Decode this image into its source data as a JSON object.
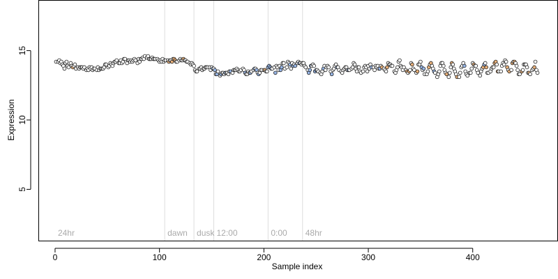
{
  "chart_data": {
    "type": "scatter",
    "title": "",
    "xlabel": "Sample index",
    "ylabel": "Expression",
    "xlim": [
      -16,
      481
    ],
    "ylim": [
      1.3,
      18.6
    ],
    "x_ticks": [
      0,
      100,
      200,
      300,
      400
    ],
    "y_ticks": [
      5,
      10,
      15
    ],
    "grid": false,
    "legend": "none",
    "colors": {
      "axis": "#000000",
      "divider": "#dddddd",
      "region_label": "#aaaaaa",
      "point_outline": "#1a1a1a",
      "fill_default": "#ffffff",
      "fill_orange": "#e8b07a",
      "fill_blue": "#9ab8e8"
    },
    "regions": [
      {
        "label": "24hr",
        "x_start": 0,
        "x_end": 105
      },
      {
        "label": "dawn",
        "x_start": 105,
        "x_end": 133
      },
      {
        "label": "dusk",
        "x_start": 133,
        "x_end": 152
      },
      {
        "label": "12:00",
        "x_start": 152,
        "x_end": 204
      },
      {
        "label": "0:00",
        "x_start": 204,
        "x_end": 237
      },
      {
        "label": "48hr",
        "x_start": 237,
        "x_end": 462
      }
    ],
    "dividers": [
      105,
      133,
      152,
      204,
      237
    ],
    "points": [
      [
        1,
        14.2
      ],
      [
        3,
        14.2
      ],
      [
        4,
        14.3
      ],
      [
        5,
        14.1
      ],
      [
        6,
        14.2
      ],
      [
        7,
        14
      ],
      [
        8,
        13.9
      ],
      [
        9,
        13.7
      ],
      [
        10,
        14.1
      ],
      [
        11,
        14.2
      ],
      [
        12,
        13.9
      ],
      [
        13,
        13.8
      ],
      [
        15,
        14.1
      ],
      [
        16,
        13.9
      ],
      [
        17,
        13.8
      ],
      [
        18,
        13.9
      ],
      [
        19,
        14
      ],
      [
        20,
        13.7
      ],
      [
        22,
        13.8
      ],
      [
        23,
        13.7
      ],
      [
        24,
        13.8
      ],
      [
        25,
        13.8
      ],
      [
        26,
        13.8
      ],
      [
        27,
        13.7
      ],
      [
        28,
        13.8
      ],
      [
        30,
        13.6
      ],
      [
        31,
        13.7
      ],
      [
        32,
        13.6
      ],
      [
        33,
        13.8
      ],
      [
        34,
        13.7
      ],
      [
        35,
        13.8
      ],
      [
        36,
        13.6
      ],
      [
        37,
        13.7
      ],
      [
        38,
        13.7
      ],
      [
        40,
        13.6
      ],
      [
        41,
        13.8
      ],
      [
        42,
        13.6
      ],
      [
        43,
        13.7
      ],
      [
        44,
        13.7
      ],
      [
        45,
        13.7
      ],
      [
        46,
        13.7
      ],
      [
        47,
        13.8
      ],
      [
        48,
        14
      ],
      [
        49,
        14
      ],
      [
        51,
        13.8
      ],
      [
        52,
        13.9
      ],
      [
        53,
        14.1
      ],
      [
        54,
        14
      ],
      [
        55,
        13.9
      ],
      [
        56,
        14.1
      ],
      [
        57,
        14.2
      ],
      [
        58,
        14.2
      ],
      [
        59,
        14.3
      ],
      [
        61,
        14.1
      ],
      [
        62,
        14.1
      ],
      [
        63,
        14.3
      ],
      [
        64,
        14.1
      ],
      [
        65,
        14.2
      ],
      [
        66,
        14.4
      ],
      [
        67,
        14.4
      ],
      [
        69,
        14.1
      ],
      [
        70,
        14.3
      ],
      [
        71,
        14.3
      ],
      [
        72,
        14.2
      ],
      [
        73,
        14.3
      ],
      [
        74,
        14.2
      ],
      [
        75,
        14.3
      ],
      [
        76,
        14.4
      ],
      [
        77,
        14.3
      ],
      [
        79,
        14.1
      ],
      [
        80,
        14.4
      ],
      [
        81,
        14.2
      ],
      [
        82,
        14.4
      ],
      [
        83,
        14.4
      ],
      [
        84,
        14.5
      ],
      [
        85,
        14.4
      ],
      [
        86,
        14.6
      ],
      [
        88,
        14.5
      ],
      [
        89,
        14.6
      ],
      [
        90,
        14.4
      ],
      [
        91,
        14.4
      ],
      [
        92,
        14.4
      ],
      [
        93,
        14.5
      ],
      [
        94,
        14.4
      ],
      [
        95,
        14.4
      ],
      [
        96,
        14.4
      ],
      [
        98,
        14.4
      ],
      [
        99,
        14.3
      ],
      [
        100,
        14.2
      ],
      [
        101,
        14.3
      ],
      [
        102,
        14.2
      ],
      [
        103,
        14.4
      ],
      [
        104,
        14.2
      ],
      [
        105,
        14.3
      ],
      [
        106,
        14.3
      ],
      [
        108,
        14.3
      ],
      [
        109,
        14.2
      ],
      [
        110,
        14.3
      ],
      [
        111,
        14.3
      ],
      [
        112,
        14.2
      ],
      [
        113,
        14.4
      ],
      [
        114,
        14.4
      ],
      [
        115,
        14.3
      ],
      [
        116,
        14.2
      ],
      [
        117,
        14.2
      ],
      [
        119,
        14.3
      ],
      [
        120,
        14.4
      ],
      [
        121,
        14.3
      ],
      [
        122,
        14.3
      ],
      [
        123,
        14.4
      ],
      [
        124,
        14.3
      ],
      [
        125,
        14.3
      ],
      [
        126,
        14.2
      ],
      [
        127,
        14.2
      ],
      [
        129,
        14.1
      ],
      [
        130,
        14
      ],
      [
        131,
        14.1
      ],
      [
        132,
        14
      ],
      [
        133,
        13.9
      ],
      [
        134,
        13.6
      ],
      [
        135,
        13.5
      ],
      [
        136,
        13.5
      ],
      [
        138,
        13.7
      ],
      [
        139,
        13.7
      ],
      [
        140,
        13.8
      ],
      [
        141,
        13.6
      ],
      [
        142,
        13.7
      ],
      [
        143,
        13.7
      ],
      [
        144,
        13.8
      ],
      [
        145,
        13.8
      ],
      [
        146,
        13.8
      ],
      [
        148,
        13.8
      ],
      [
        149,
        13.6
      ],
      [
        150,
        13.8
      ],
      [
        151,
        13.7
      ],
      [
        152,
        13.7
      ],
      [
        153,
        13.6
      ],
      [
        154,
        13.3
      ],
      [
        155,
        13.3
      ],
      [
        156,
        13.5
      ],
      [
        158,
        13.2
      ],
      [
        159,
        13.3
      ],
      [
        160,
        13.4
      ],
      [
        161,
        13.4
      ],
      [
        162,
        13.3
      ],
      [
        163,
        13.4
      ],
      [
        164,
        13.4
      ],
      [
        165,
        13.4
      ],
      [
        166,
        13.3
      ],
      [
        167,
        13.5
      ],
      [
        168,
        13.5
      ],
      [
        170,
        13.4
      ],
      [
        171,
        13.6
      ],
      [
        172,
        13.6
      ],
      [
        173,
        13.6
      ],
      [
        174,
        13.7
      ],
      [
        175,
        13.6
      ],
      [
        176,
        13.5
      ],
      [
        177,
        13.5
      ],
      [
        178,
        13.6
      ],
      [
        180,
        13.7
      ],
      [
        181,
        13.6
      ],
      [
        182,
        13.4
      ],
      [
        183,
        13.3
      ],
      [
        184,
        13.3
      ],
      [
        185,
        13.5
      ],
      [
        186,
        13.4
      ],
      [
        187,
        13.4
      ],
      [
        188,
        13.5
      ],
      [
        190,
        13.6
      ],
      [
        191,
        13.7
      ],
      [
        192,
        13.7
      ],
      [
        193,
        13.6
      ],
      [
        194,
        13.4
      ],
      [
        195,
        13.3
      ],
      [
        196,
        13.4
      ],
      [
        197,
        13.6
      ],
      [
        198,
        13.6
      ],
      [
        200,
        13.6
      ],
      [
        201,
        13.6
      ],
      [
        202,
        13.5
      ],
      [
        203,
        13.5
      ],
      [
        204,
        13.8
      ],
      [
        205,
        13.9
      ],
      [
        206,
        13.8
      ],
      [
        207,
        13.7
      ],
      [
        208,
        13.7
      ],
      [
        210,
        13.8
      ],
      [
        211,
        13.4
      ],
      [
        212,
        13.9
      ],
      [
        213,
        13.8
      ],
      [
        214,
        13.6
      ],
      [
        215,
        13.9
      ],
      [
        216,
        13.6
      ],
      [
        217,
        13.8
      ],
      [
        218,
        14.1
      ],
      [
        219,
        14.1
      ],
      [
        220,
        13.7
      ],
      [
        222,
        13.8
      ],
      [
        223,
        14.2
      ],
      [
        224,
        14.1
      ],
      [
        225,
        14
      ],
      [
        226,
        13.7
      ],
      [
        227,
        14.1
      ],
      [
        228,
        13.9
      ],
      [
        229,
        14
      ],
      [
        230,
        13.9
      ],
      [
        232,
        14.1
      ],
      [
        233,
        14.2
      ],
      [
        234,
        14.1
      ],
      [
        235,
        14.1
      ],
      [
        236,
        14
      ],
      [
        237,
        14.1
      ],
      [
        238,
        14.1
      ],
      [
        239,
        13.9
      ],
      [
        240,
        13.8
      ],
      [
        242,
        13.6
      ],
      [
        243,
        13.4
      ],
      [
        244,
        13.6
      ],
      [
        245,
        13.9
      ],
      [
        246,
        13.9
      ],
      [
        247,
        14
      ],
      [
        248,
        13.9
      ],
      [
        249,
        13.5
      ],
      [
        250,
        13.6
      ],
      [
        251,
        13.6
      ],
      [
        252,
        13.5
      ],
      [
        254,
        13.4
      ],
      [
        255,
        13.3
      ],
      [
        256,
        13.5
      ],
      [
        257,
        13.7
      ],
      [
        258,
        13.9
      ],
      [
        259,
        13.6
      ],
      [
        260,
        13.8
      ],
      [
        261,
        13.9
      ],
      [
        262,
        13.8
      ],
      [
        264,
        13.5
      ],
      [
        265,
        13.3
      ],
      [
        266,
        13.6
      ],
      [
        267,
        13.7
      ],
      [
        268,
        13.9
      ],
      [
        269,
        14
      ],
      [
        270,
        13.8
      ],
      [
        271,
        13.8
      ],
      [
        272,
        13.6
      ],
      [
        274,
        13.5
      ],
      [
        275,
        13.4
      ],
      [
        276,
        13.6
      ],
      [
        277,
        13.7
      ],
      [
        278,
        13.8
      ],
      [
        279,
        13.8
      ],
      [
        280,
        13.6
      ],
      [
        281,
        13.6
      ],
      [
        282,
        13.6
      ],
      [
        284,
        13.7
      ],
      [
        285,
        13.8
      ],
      [
        286,
        14.1
      ],
      [
        287,
        14
      ],
      [
        288,
        13.7
      ],
      [
        289,
        13.5
      ],
      [
        290,
        13.8
      ],
      [
        291,
        13.8
      ],
      [
        292,
        13.5
      ],
      [
        293,
        13.4
      ],
      [
        295,
        13.5
      ],
      [
        296,
        13.8
      ],
      [
        297,
        13.9
      ],
      [
        298,
        13.8
      ],
      [
        299,
        13.5
      ],
      [
        300,
        13.9
      ],
      [
        301,
        13.7
      ],
      [
        302,
        14
      ],
      [
        303,
        13.8
      ],
      [
        305,
        13.8
      ],
      [
        306,
        13.6
      ],
      [
        307,
        13.9
      ],
      [
        308,
        13.8
      ],
      [
        309,
        13.9
      ],
      [
        310,
        13.7
      ],
      [
        311,
        13.7
      ],
      [
        312,
        13.9
      ],
      [
        313,
        13.8
      ],
      [
        315,
        13.7
      ],
      [
        316,
        13.6
      ],
      [
        317,
        13.5
      ],
      [
        318,
        13.8
      ],
      [
        319,
        14.1
      ],
      [
        320,
        14
      ],
      [
        321,
        14
      ],
      [
        322,
        13.9
      ],
      [
        323,
        13.9
      ],
      [
        325,
        13.5
      ],
      [
        326,
        13.4
      ],
      [
        327,
        13.6
      ],
      [
        328,
        13.8
      ],
      [
        329,
        14.2
      ],
      [
        330,
        14.3
      ],
      [
        331,
        13.9
      ],
      [
        332,
        13.8
      ],
      [
        333,
        13.6
      ],
      [
        334,
        13.8
      ],
      [
        336,
        13.6
      ],
      [
        337,
        13.5
      ],
      [
        338,
        13.4
      ],
      [
        339,
        13.5
      ],
      [
        340,
        13.6
      ],
      [
        341,
        14.1
      ],
      [
        342,
        14
      ],
      [
        343,
        13.7
      ],
      [
        344,
        13.6
      ],
      [
        346,
        13.4
      ],
      [
        347,
        13.5
      ],
      [
        348,
        14
      ],
      [
        349,
        14
      ],
      [
        350,
        14.2
      ],
      [
        351,
        13.8
      ],
      [
        352,
        13.6
      ],
      [
        353,
        13.7
      ],
      [
        354,
        13.3
      ],
      [
        356,
        13.3
      ],
      [
        357,
        13.5
      ],
      [
        358,
        13.8
      ],
      [
        359,
        14
      ],
      [
        360,
        14.1
      ],
      [
        361,
        13.9
      ],
      [
        362,
        13.7
      ],
      [
        363,
        13.5
      ],
      [
        364,
        13.4
      ],
      [
        366,
        13.1
      ],
      [
        367,
        13.3
      ],
      [
        368,
        13.5
      ],
      [
        369,
        13.9
      ],
      [
        370,
        14.1
      ],
      [
        371,
        14.1
      ],
      [
        372,
        13.9
      ],
      [
        373,
        13.6
      ],
      [
        374,
        13.4
      ],
      [
        375,
        13.3
      ],
      [
        377,
        13.1
      ],
      [
        378,
        13.4
      ],
      [
        379,
        13.8
      ],
      [
        380,
        14.1
      ],
      [
        381,
        14
      ],
      [
        382,
        13.7
      ],
      [
        383,
        13.5
      ],
      [
        384,
        13.3
      ],
      [
        385,
        13.1
      ],
      [
        387,
        13.1
      ],
      [
        388,
        13.4
      ],
      [
        389,
        13.8
      ],
      [
        390,
        13.9
      ],
      [
        391,
        14.1
      ],
      [
        392,
        13.9
      ],
      [
        393,
        13.5
      ],
      [
        394,
        13.3
      ],
      [
        395,
        13.2
      ],
      [
        397,
        13.4
      ],
      [
        398,
        13.4
      ],
      [
        399,
        13.7
      ],
      [
        400,
        14.1
      ],
      [
        401,
        14
      ],
      [
        402,
        13.9
      ],
      [
        403,
        13.9
      ],
      [
        404,
        13.6
      ],
      [
        405,
        13.4
      ],
      [
        407,
        13.2
      ],
      [
        408,
        13.5
      ],
      [
        409,
        13.7
      ],
      [
        410,
        13.8
      ],
      [
        411,
        14
      ],
      [
        412,
        14.1
      ],
      [
        413,
        13.8
      ],
      [
        414,
        13.4
      ],
      [
        415,
        13.4
      ],
      [
        417,
        13.5
      ],
      [
        418,
        13.7
      ],
      [
        419,
        13.8
      ],
      [
        420,
        13.8
      ],
      [
        421,
        14.1
      ],
      [
        422,
        14.2
      ],
      [
        423,
        14
      ],
      [
        424,
        13.5
      ],
      [
        425,
        13.5
      ],
      [
        427,
        13.5
      ],
      [
        428,
        13.9
      ],
      [
        429,
        14.1
      ],
      [
        430,
        14
      ],
      [
        431,
        14.3
      ],
      [
        432,
        14.2
      ],
      [
        433,
        13.8
      ],
      [
        434,
        13.6
      ],
      [
        435,
        13.5
      ],
      [
        437,
        13.6
      ],
      [
        438,
        14.1
      ],
      [
        439,
        14.2
      ],
      [
        440,
        14.2
      ],
      [
        441,
        14.1
      ],
      [
        442,
        13.9
      ],
      [
        443,
        13.6
      ],
      [
        444,
        13.3
      ],
      [
        445,
        13.3
      ],
      [
        447,
        13.5
      ],
      [
        448,
        13.6
      ],
      [
        449,
        14
      ],
      [
        450,
        14
      ],
      [
        451,
        14
      ],
      [
        452,
        13.8
      ],
      [
        453,
        13.4
      ],
      [
        454,
        13.4
      ],
      [
        455,
        13.3
      ],
      [
        457,
        13.6
      ],
      [
        458,
        13.7
      ],
      [
        459,
        13.8
      ],
      [
        460,
        14.2
      ],
      [
        461,
        13.6
      ],
      [
        462,
        13.4
      ]
    ],
    "orange_points": [
      17,
      109,
      112,
      114,
      115,
      123,
      201,
      313,
      318,
      335,
      337,
      339,
      342,
      347,
      355,
      358,
      360,
      375,
      380,
      385,
      401,
      410,
      413,
      421,
      422,
      424,
      433,
      435,
      438,
      440,
      446,
      447,
      454,
      459
    ],
    "blue_points": [
      151,
      153,
      155,
      157,
      159,
      163,
      168,
      182,
      187,
      191,
      193,
      195,
      199,
      204,
      205,
      206,
      207,
      211,
      216,
      217,
      221,
      225,
      228,
      230,
      234,
      243,
      244,
      245,
      249,
      250,
      257,
      263,
      265,
      270,
      281,
      303,
      311,
      351,
      353,
      360,
      363,
      392,
      411
    ]
  }
}
